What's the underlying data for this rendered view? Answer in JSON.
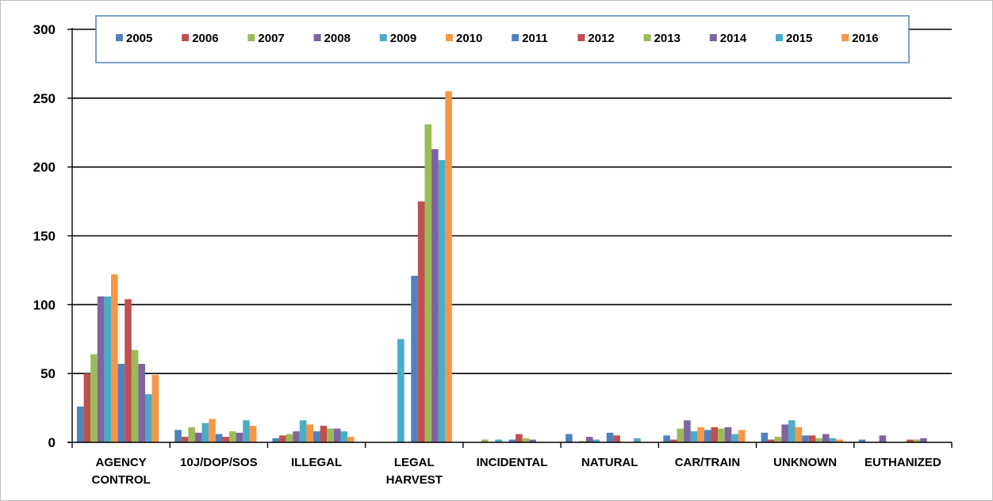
{
  "chart_data": {
    "type": "bar",
    "title": "",
    "xlabel": "",
    "ylabel": "",
    "ylim": [
      0,
      300
    ],
    "yticks": [
      0,
      50,
      100,
      150,
      200,
      250,
      300
    ],
    "grid": true,
    "legend_position": "top",
    "categories": [
      "AGENCY CONTROL",
      "10J/DOP/SOS",
      "ILLEGAL",
      "LEGAL HARVEST",
      "INCIDENTAL",
      "NATURAL",
      "CAR/TRAIN",
      "UNKNOWN",
      "EUTHANIZED"
    ],
    "series": [
      {
        "name": "2005",
        "color": "#4f81bd",
        "values": [
          26,
          9,
          3,
          0,
          0,
          6,
          5,
          7,
          2
        ]
      },
      {
        "name": "2006",
        "color": "#c0504d",
        "values": [
          50,
          4,
          5,
          0,
          0,
          0,
          2,
          2,
          0
        ]
      },
      {
        "name": "2007",
        "color": "#9bbb59",
        "values": [
          64,
          11,
          6,
          0,
          2,
          1,
          10,
          4,
          0
        ]
      },
      {
        "name": "2008",
        "color": "#8064a2",
        "values": [
          106,
          7,
          8,
          0,
          0,
          4,
          16,
          13,
          5
        ]
      },
      {
        "name": "2009",
        "color": "#4bacc6",
        "values": [
          106,
          14,
          16,
          75,
          2,
          2,
          8,
          16,
          0
        ]
      },
      {
        "name": "2010",
        "color": "#f79646",
        "values": [
          122,
          17,
          13,
          0,
          0,
          0,
          11,
          11,
          0
        ]
      },
      {
        "name": "2011",
        "color": "#4f81bd",
        "values": [
          57,
          6,
          8,
          121,
          2,
          7,
          9,
          5,
          0
        ]
      },
      {
        "name": "2012",
        "color": "#c0504d",
        "values": [
          104,
          4,
          12,
          175,
          6,
          5,
          11,
          5,
          2
        ]
      },
      {
        "name": "2013",
        "color": "#9bbb59",
        "values": [
          67,
          8,
          10,
          231,
          3,
          0,
          10,
          3,
          2
        ]
      },
      {
        "name": "2014",
        "color": "#8064a2",
        "values": [
          57,
          7,
          10,
          213,
          2,
          0,
          11,
          6,
          3
        ]
      },
      {
        "name": "2015",
        "color": "#4bacc6",
        "values": [
          35,
          16,
          8,
          205,
          0,
          3,
          6,
          3,
          0
        ]
      },
      {
        "name": "2016",
        "color": "#f79646",
        "values": [
          49,
          12,
          4,
          255,
          0,
          0,
          9,
          2,
          0
        ]
      }
    ]
  }
}
